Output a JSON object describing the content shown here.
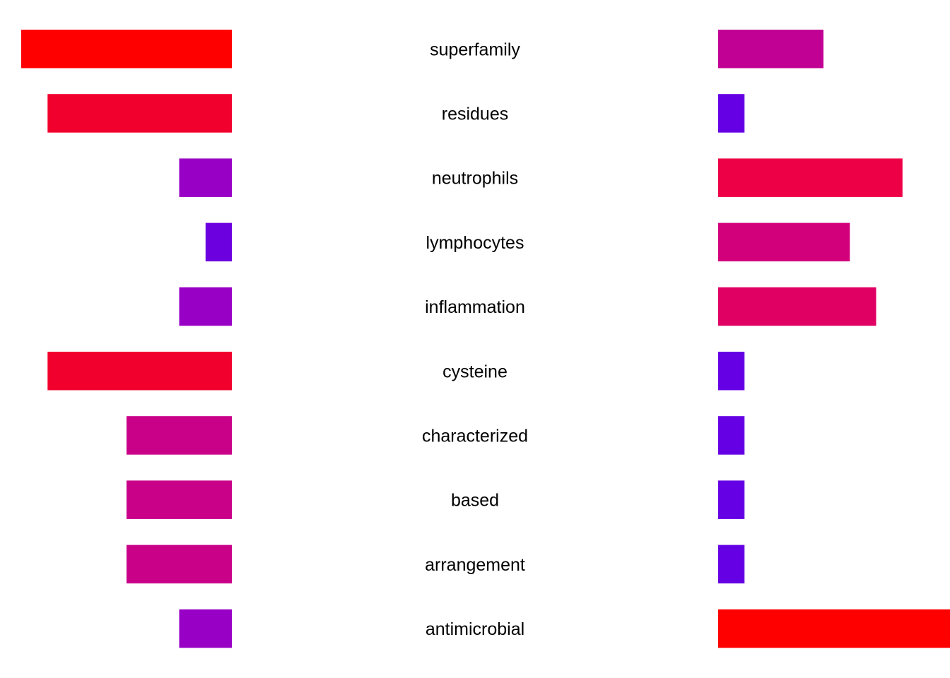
{
  "chart_data": {
    "type": "bar",
    "layout": "mirrored",
    "title": "",
    "xlabel": "",
    "ylabel": "",
    "grid": false,
    "legend": "none",
    "categories": [
      "superfamily",
      "residues",
      "neutrophils",
      "lymphocytes",
      "inflammation",
      "cysteine",
      "characterized",
      "based",
      "arrangement",
      "antimicrobial"
    ],
    "series": [
      {
        "side": "left",
        "values": [
          8,
          7,
          2,
          1,
          2,
          7,
          4,
          4,
          4,
          2
        ],
        "colors": [
          "#ff0000",
          "#f2002d",
          "#9900c5",
          "#6c00df",
          "#9900c5",
          "#f2002d",
          "#c90088",
          "#c90088",
          "#c90088",
          "#9900c5"
        ]
      },
      {
        "side": "right",
        "values": [
          4,
          1,
          7,
          5,
          6,
          1,
          1,
          1,
          1,
          9
        ],
        "colors": [
          "#c10094",
          "#6500e4",
          "#ee0047",
          "#d3007c",
          "#e00064",
          "#6500e4",
          "#6500e4",
          "#6500e4",
          "#6500e4",
          "#ff0000"
        ]
      }
    ],
    "xlim": [
      0,
      9
    ]
  }
}
